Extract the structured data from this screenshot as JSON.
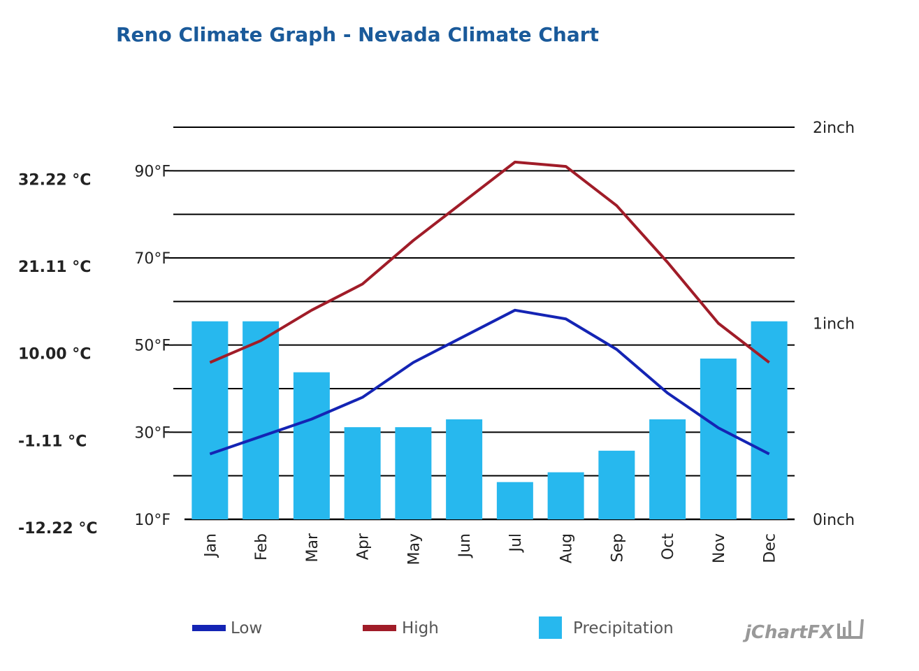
{
  "chart_data": {
    "type": "bar",
    "title": "Reno Climate Graph - Nevada Climate Chart",
    "categories": [
      "Jan",
      "Feb",
      "Mar",
      "Apr",
      "May",
      "Jun",
      "Jul",
      "Aug",
      "Sep",
      "Oct",
      "Nov",
      "Dec"
    ],
    "series": [
      {
        "name": "Low",
        "type": "line",
        "axis": "fahrenheit",
        "color": "#1424b4",
        "values": [
          25,
          29,
          33,
          38,
          46,
          52,
          58,
          56,
          49,
          39,
          31,
          25
        ]
      },
      {
        "name": "High",
        "type": "line",
        "axis": "fahrenheit",
        "color": "#a01c28",
        "values": [
          46,
          51,
          58,
          64,
          74,
          83,
          92,
          91,
          82,
          69,
          55,
          46
        ]
      },
      {
        "name": "Precipitation",
        "type": "bar",
        "axis": "inch",
        "color": "#27b8ee",
        "values": [
          1.01,
          1.01,
          0.75,
          0.47,
          0.47,
          0.51,
          0.19,
          0.24,
          0.35,
          0.51,
          0.82,
          1.01
        ]
      }
    ],
    "y_left": {
      "unit": "°F",
      "ylim": [
        10,
        100
      ],
      "ticks": [
        "90°F",
        "70°F",
        "50°F",
        "30°F",
        "10°F"
      ],
      "tick_values": [
        90,
        70,
        50,
        30,
        10
      ]
    },
    "y_left_celsius": {
      "ticks": [
        "32.22 °C",
        "21.11 °C",
        "10.00 °C",
        "-1.11 °C",
        "-12.22 °C"
      ],
      "tick_values": [
        90,
        70,
        50,
        30,
        10
      ]
    },
    "y_right": {
      "unit": "inch",
      "ylim": [
        0,
        2
      ],
      "ticks": [
        "2inch",
        "1inch",
        "0inch"
      ],
      "tick_values": [
        2,
        1,
        0
      ]
    },
    "grid": true,
    "legend": {
      "position": "bottom",
      "items": [
        {
          "label": "Low",
          "color": "#1424b4",
          "symbol": "line"
        },
        {
          "label": "High",
          "color": "#a01c28",
          "symbol": "line"
        },
        {
          "label": "Precipitation",
          "color": "#27b8ee",
          "symbol": "box"
        }
      ]
    }
  },
  "watermark": "jChartFX"
}
